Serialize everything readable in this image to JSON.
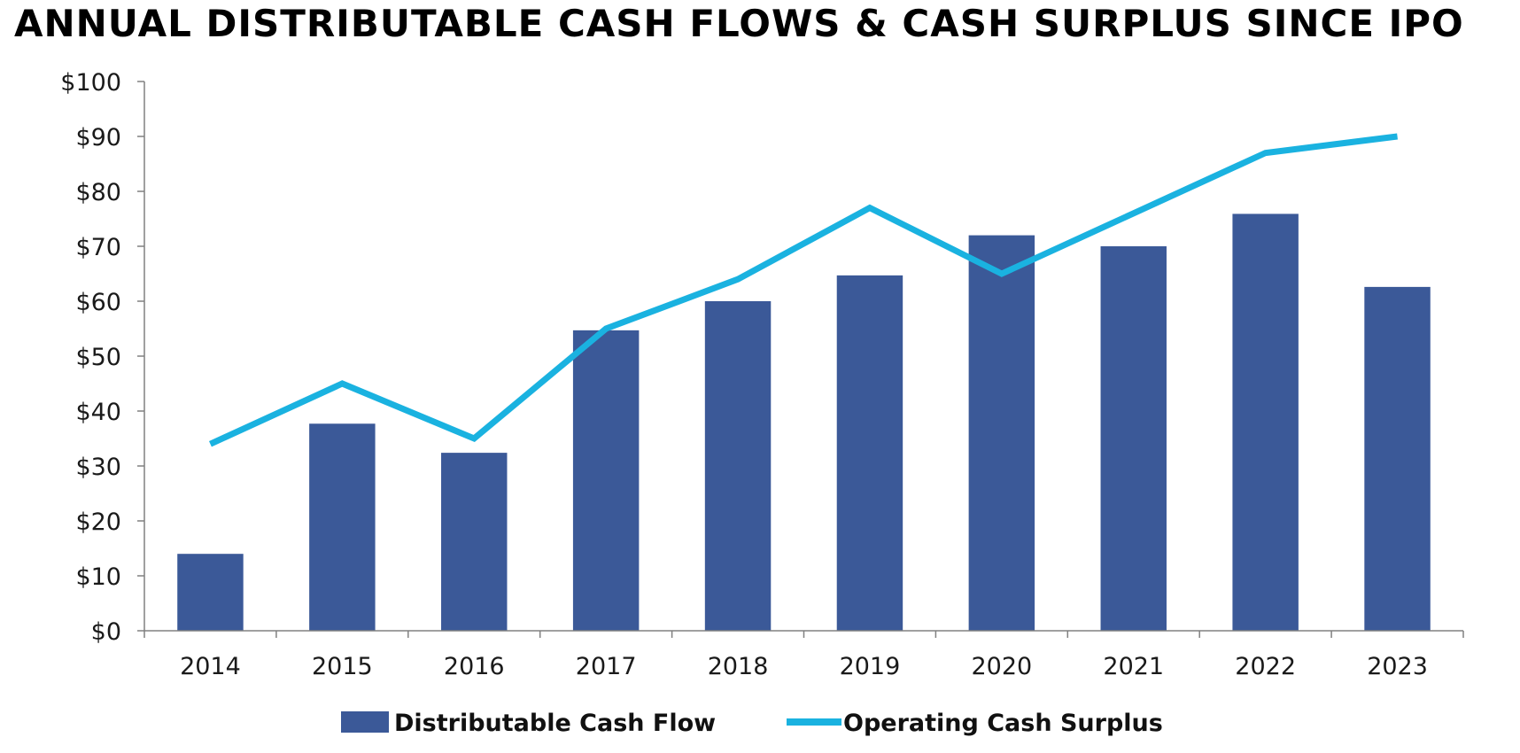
{
  "chart_data": {
    "type": "bar",
    "title": "ANNUAL DISTRIBUTABLE CASH FLOWS & CASH SURPLUS SINCE IPO",
    "xlabel": "",
    "ylabel": "",
    "categories": [
      "2014",
      "2015",
      "2016",
      "2017",
      "2018",
      "2019",
      "2020",
      "2021",
      "2022",
      "2023"
    ],
    "ylim": [
      0,
      100
    ],
    "yticks": [
      0,
      10,
      20,
      30,
      40,
      50,
      60,
      70,
      80,
      90,
      100
    ],
    "ytick_labels": [
      "$0",
      "$10",
      "$20",
      "$30",
      "$40",
      "$50",
      "$60",
      "$70",
      "$80",
      "$90",
      "$100"
    ],
    "grid": false,
    "legend_position": "bottom",
    "series": [
      {
        "name": "Distributable Cash Flow",
        "type": "bar",
        "color": "#3b5998",
        "values": [
          14,
          37.7,
          32.4,
          54.7,
          60,
          64.7,
          72,
          70,
          75.9,
          62.6
        ]
      },
      {
        "name": "Operating Cash Surplus",
        "type": "line",
        "color": "#1ab2e0",
        "values": [
          34,
          45,
          35,
          55,
          64,
          77,
          65,
          76,
          87,
          90
        ]
      }
    ]
  }
}
